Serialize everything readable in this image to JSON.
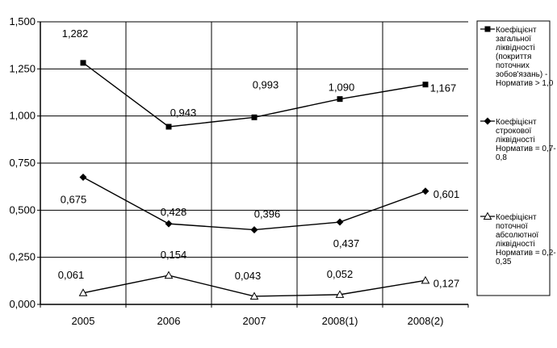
{
  "chart_data": {
    "type": "line",
    "categories": [
      "2005",
      "2006",
      "2007",
      "2008(1)",
      "2008(2)"
    ],
    "ylim": [
      0,
      1.5
    ],
    "y_ticks": [
      "0,000",
      "0,250",
      "0,500",
      "0,750",
      "1,000",
      "1,250",
      "1,500"
    ],
    "grid": true,
    "legend_position": "right",
    "series": [
      {
        "name": "Коефіцієнт загальної ліквідності (покриття поточних зобов'язань) - Норматив > 1,0",
        "marker": "square",
        "values": [
          1.282,
          0.943,
          0.993,
          1.09,
          1.167
        ],
        "labels": [
          "1,282",
          "0,943",
          "0,993",
          "1,090",
          "1,167"
        ]
      },
      {
        "name": "Коефіцієнт строкової ліквідності - Норматив = 0,7-0,8",
        "marker": "diamond",
        "values": [
          0.675,
          0.428,
          0.396,
          0.437,
          0.601
        ],
        "labels": [
          "0,675",
          "0,428",
          "0,396",
          "0,437",
          "0,601"
        ]
      },
      {
        "name": "Коефіцієнт поточної абсолютної ліквідності - Норматив = 0,2-0,35",
        "marker": "triangle",
        "values": [
          0.061,
          0.154,
          0.043,
          0.052,
          0.127
        ],
        "labels": [
          "0,061",
          "0,154",
          "0,043",
          "0,052",
          "0,127"
        ]
      }
    ]
  },
  "legend": {
    "items": [
      {
        "lines": [
          "Коефіцієнт",
          "загальної",
          "ліквідності",
          "(покриття",
          "поточних",
          "зобов'язань) -",
          "Норматив > 1,0"
        ]
      },
      {
        "lines": [
          "Коефіцієнт",
          "строкової",
          "ліквідності",
          "Норматив = 0,7-",
          "0,8"
        ]
      },
      {
        "lines": [
          "Коефіцієнт",
          "поточної",
          "абсолютної",
          "ліквідності",
          "Норматив = 0,2-",
          "0,35"
        ]
      }
    ]
  }
}
